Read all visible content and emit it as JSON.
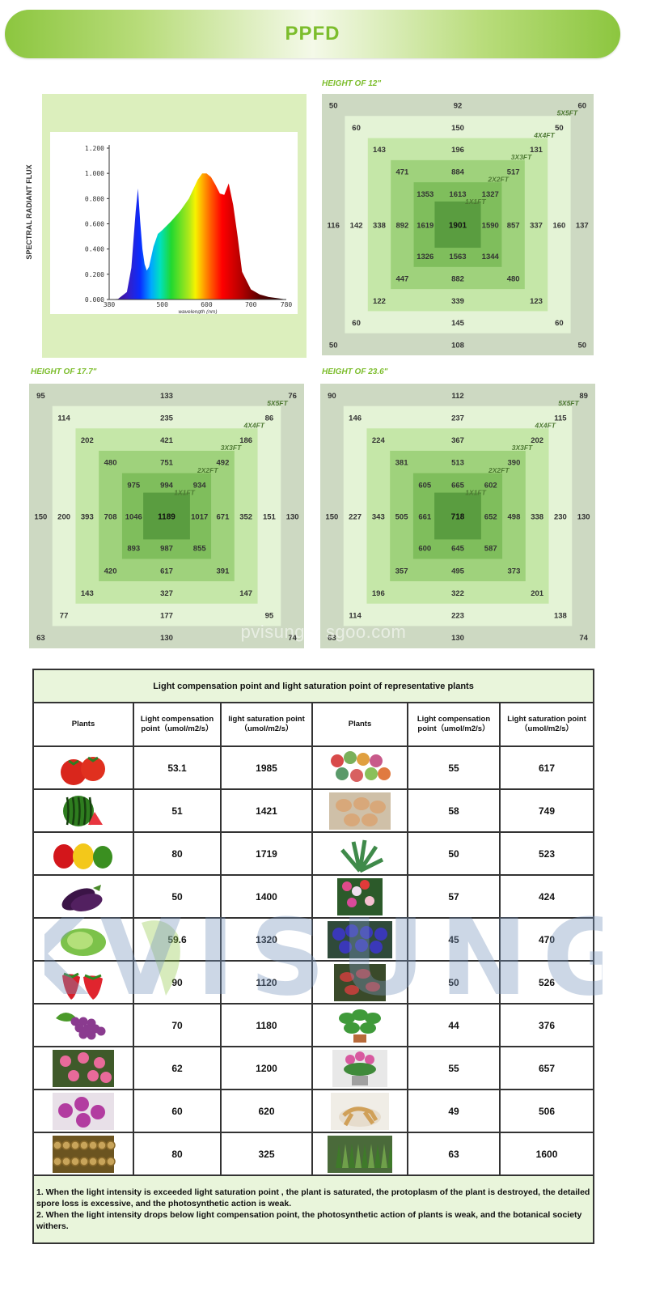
{
  "banner": {
    "title": "PPFD"
  },
  "spectrum": {
    "ylabel": "SPECTRAL RADIANT FLUX",
    "xlabel": "wavelength (nm)",
    "yticks": [
      "0.000",
      "0.200",
      "0.400",
      "0.600",
      "0.800",
      "1.000",
      "1.200"
    ],
    "xticks": [
      "380",
      "500",
      "600",
      "700",
      "780"
    ],
    "chart_data_ref": "chart_data[0]"
  },
  "chart_data": [
    {
      "type": "area",
      "title": "",
      "xlabel": "wavelength (nm)",
      "ylabel": "SPECTRAL RADIANT FLUX",
      "xlim": [
        380,
        780
      ],
      "ylim": [
        0,
        1.2
      ],
      "x": [
        380,
        400,
        420,
        430,
        440,
        445,
        450,
        455,
        460,
        465,
        470,
        480,
        490,
        500,
        520,
        540,
        560,
        580,
        590,
        600,
        610,
        620,
        630,
        640,
        650,
        660,
        670,
        680,
        700,
        720,
        740,
        760,
        780
      ],
      "y": [
        0.0,
        0.005,
        0.06,
        0.25,
        0.7,
        0.88,
        0.62,
        0.4,
        0.28,
        0.23,
        0.26,
        0.42,
        0.52,
        0.55,
        0.62,
        0.7,
        0.8,
        0.95,
        1.0,
        1.0,
        0.97,
        0.91,
        0.84,
        0.83,
        0.92,
        0.75,
        0.5,
        0.22,
        0.08,
        0.04,
        0.02,
        0.01,
        0.0
      ]
    },
    {
      "type": "heatmap",
      "title": "HEIGHT OF 12\""
    },
    {
      "type": "heatmap",
      "title": "HEIGHT OF 17.7\""
    },
    {
      "type": "heatmap",
      "title": "HEIGHT OF 23.6\""
    }
  ],
  "grids": [
    {
      "title": "HEIGHT OF 12\"",
      "ring_labels": [
        "5X5FT",
        "4X4FT",
        "3X3FT",
        "2X2FT",
        "1X1FT"
      ],
      "rings": [
        {
          "tl": "50",
          "top": "92",
          "tr": "60",
          "left": "116",
          "right": "137",
          "bl": "50",
          "bottom": "108",
          "br": "50"
        },
        {
          "tl": "60",
          "top": "150",
          "tr": "50",
          "left": "142",
          "right": "160",
          "bl": "60",
          "bottom": "145",
          "br": "60"
        },
        {
          "tl": "143",
          "top": "196",
          "tr": "131",
          "left": "338",
          "right": "337",
          "bl": "122",
          "bottom": "339",
          "br": "123"
        },
        {
          "tl": "471",
          "top": "884",
          "tr": "517",
          "left": "892",
          "right": "857",
          "bl": "447",
          "bottom": "882",
          "br": "480"
        },
        {
          "tl": "1353",
          "top": "1613",
          "tr": "1327",
          "left": "1619",
          "right": "1590",
          "bl": "1326",
          "bottom": "1563",
          "br": "1344"
        }
      ],
      "center": "1901"
    },
    {
      "title": "HEIGHT OF 17.7\"",
      "ring_labels": [
        "5X5FT",
        "4X4FT",
        "3X3FT",
        "2X2FT",
        "1X1FT"
      ],
      "rings": [
        {
          "tl": "95",
          "top": "133",
          "tr": "76",
          "left": "150",
          "right": "130",
          "bl": "63",
          "bottom": "130",
          "br": "74"
        },
        {
          "tl": "114",
          "top": "235",
          "tr": "86",
          "left": "200",
          "right": "151",
          "bl": "77",
          "bottom": "177",
          "br": "95"
        },
        {
          "tl": "202",
          "top": "421",
          "tr": "186",
          "left": "393",
          "right": "352",
          "bl": "143",
          "bottom": "327",
          "br": "147"
        },
        {
          "tl": "480",
          "top": "751",
          "tr": "492",
          "left": "708",
          "right": "671",
          "bl": "420",
          "bottom": "617",
          "br": "391"
        },
        {
          "tl": "975",
          "top": "994",
          "tr": "934",
          "left": "1046",
          "right": "1017",
          "bl": "893",
          "bottom": "987",
          "br": "855"
        }
      ],
      "center": "1189"
    },
    {
      "title": "HEIGHT OF 23.6\"",
      "ring_labels": [
        "5X5FT",
        "4X4FT",
        "3X3FT",
        "2X2FT",
        "1X1FT"
      ],
      "rings": [
        {
          "tl": "90",
          "top": "112",
          "tr": "89",
          "left": "150",
          "right": "130",
          "bl": "63",
          "bottom": "130",
          "br": "74"
        },
        {
          "tl": "146",
          "top": "237",
          "tr": "115",
          "left": "227",
          "right": "230",
          "bl": "114",
          "bottom": "223",
          "br": "138"
        },
        {
          "tl": "224",
          "top": "367",
          "tr": "202",
          "left": "343",
          "right": "338",
          "bl": "196",
          "bottom": "322",
          "br": "201"
        },
        {
          "tl": "381",
          "top": "513",
          "tr": "390",
          "left": "505",
          "right": "498",
          "bl": "357",
          "bottom": "495",
          "br": "373"
        },
        {
          "tl": "605",
          "top": "665",
          "tr": "602",
          "left": "661",
          "right": "652",
          "bl": "600",
          "bottom": "645",
          "br": "587"
        }
      ],
      "center": "718"
    }
  ],
  "table": {
    "caption": "Light compensation point and light saturation point of representative plants",
    "headers": [
      "Plants",
      "Light compensation point（umol/m2/s）",
      "light saturation point（umol/m2/s）",
      "Plants",
      "Light compensation point（umol/m2/s）",
      "Light saturation point（umol/m2/s）"
    ],
    "rows": [
      {
        "lp": "tomato-image",
        "lc": "53.1",
        "ls": "1985",
        "rp": "succulents-image",
        "rc": "55",
        "rs": "617"
      },
      {
        "lp": "watermelon-image",
        "lc": "51",
        "ls": "1421",
        "rp": "lithops-image",
        "rc": "58",
        "rs": "749"
      },
      {
        "lp": "peppers-image",
        "lc": "80",
        "ls": "1719",
        "rp": "aloe-image",
        "rc": "50",
        "rs": "523"
      },
      {
        "lp": "eggplant-image",
        "lc": "50",
        "ls": "1400",
        "rp": "gladiolus-image",
        "rc": "57",
        "rs": "424"
      },
      {
        "lp": "lettuce-image",
        "lc": "59.6",
        "ls": "1320",
        "rp": "african-violet-image",
        "rc": "45",
        "rs": "470"
      },
      {
        "lp": "strawberry-image",
        "lc": "90",
        "ls": "1120",
        "rp": "venus-flytrap-image",
        "rc": "50",
        "rs": "526"
      },
      {
        "lp": "grapes-image",
        "lc": "70",
        "ls": "1180",
        "rp": "pothos-image",
        "rc": "44",
        "rs": "376"
      },
      {
        "lp": "roses-image",
        "lc": "62",
        "ls": "1200",
        "rp": "potted-flower-image",
        "rc": "55",
        "rs": "657"
      },
      {
        "lp": "orchid-image",
        "lc": "60",
        "ls": "620",
        "rp": "ginseng-image",
        "rc": "49",
        "rs": "506"
      },
      {
        "lp": "dried-herb-image",
        "lc": "80",
        "ls": "325",
        "rp": "cannabis-image",
        "rc": "63",
        "rs": "1600"
      }
    ],
    "note1": "1. When the light intensity is exceeded light saturation point , the plant is saturated, the protoplasm of the plant is destroyed, the detailed spore loss is excessive, and the photosynthetic action is weak.",
    "note2": " 2. When the light intensity drops below light compensation point, the photosynthetic action of plants is weak, and the botanical society withers."
  },
  "watermark": {
    "text": "pvisung.b   sgoo.com",
    "logo": "KVISUNG"
  },
  "colors": {
    "brand_green": "#7cbd2c",
    "ring0": "#cdd9c2",
    "ring1": "#e4f3d6",
    "ring2": "#c5e7a8",
    "ring3": "#9fd27c",
    "ring4": "#7fbe5c",
    "center": "#5a9d40"
  }
}
